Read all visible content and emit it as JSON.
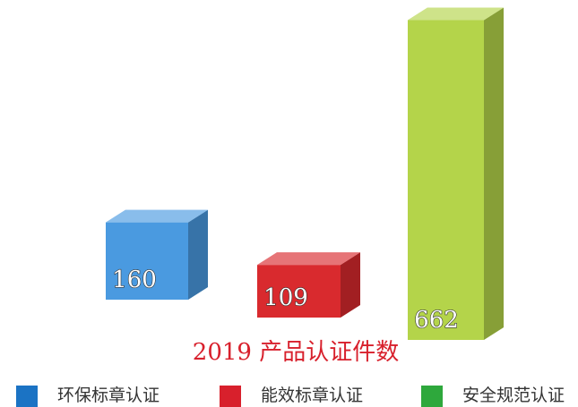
{
  "chart_data": {
    "type": "bar3d",
    "title": "2019 产品认证件数",
    "categories": [
      "环保标章认证",
      "能效标章认证",
      "安全规范认证"
    ],
    "values": [
      160,
      109,
      662
    ],
    "colors": [
      "#4a9ae0",
      "#d92a2e",
      "#b4d44a"
    ],
    "legend_colors": [
      "#1b73c4",
      "#d8202c",
      "#2ea83c"
    ]
  }
}
